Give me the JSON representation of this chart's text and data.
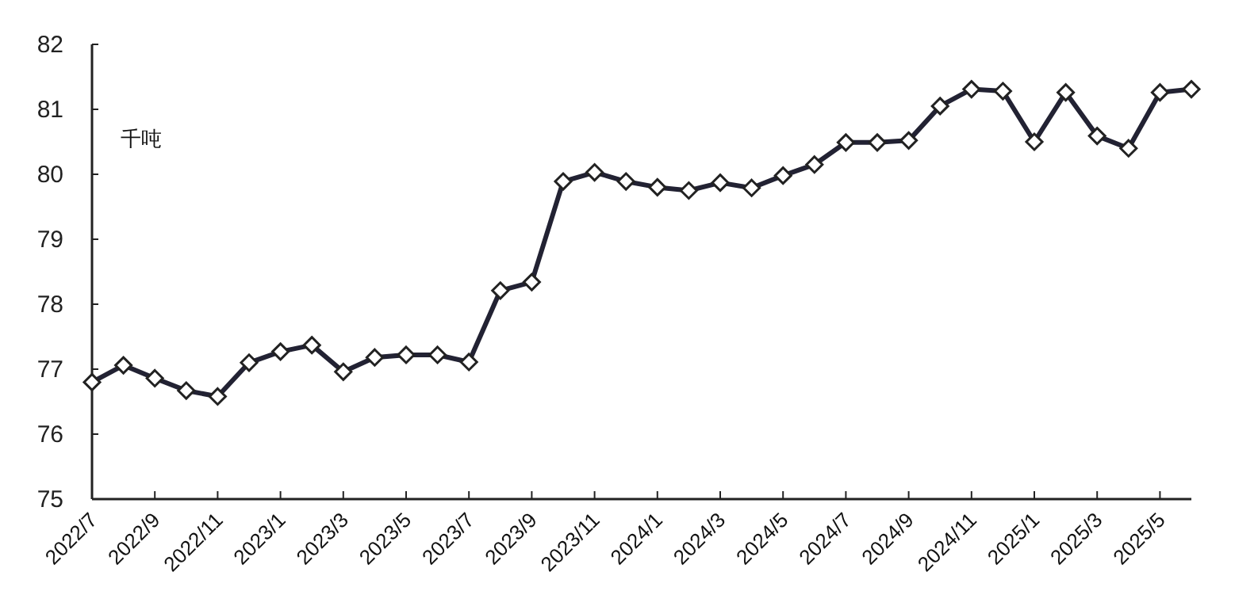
{
  "chart_data": {
    "type": "line",
    "ylabel": "千吨",
    "categories": [
      "2022/7",
      null,
      "2022/9",
      null,
      "2022/11",
      null,
      "2023/1",
      null,
      "2023/3",
      null,
      "2023/5",
      null,
      "2023/7",
      null,
      "2023/9",
      null,
      "2023/11",
      null,
      "2024/1",
      null,
      "2024/3",
      null,
      "2024/5",
      null,
      "2024/7",
      null,
      "2024/9",
      null,
      "2024/11",
      null,
      "2025/1",
      null,
      "2025/3",
      null,
      "2025/5",
      null
    ],
    "series": [
      {
        "color": "#222233",
        "values": [
          76.8,
          77.06,
          76.86,
          76.67,
          76.58,
          77.1,
          77.27,
          77.37,
          76.96,
          77.18,
          77.22,
          77.22,
          77.11,
          78.21,
          78.34,
          79.89,
          80.03,
          79.89,
          79.8,
          79.75,
          79.87,
          79.79,
          79.98,
          80.15,
          80.49,
          80.49,
          80.52,
          81.05,
          81.31,
          81.28,
          80.5,
          81.26,
          80.59,
          80.4,
          81.26,
          81.31
        ]
      }
    ],
    "ylim": [
      75,
      82
    ],
    "yticks": [
      75,
      76,
      77,
      78,
      79,
      80,
      81,
      82
    ],
    "marker": "diamond",
    "line_style": "solid"
  }
}
